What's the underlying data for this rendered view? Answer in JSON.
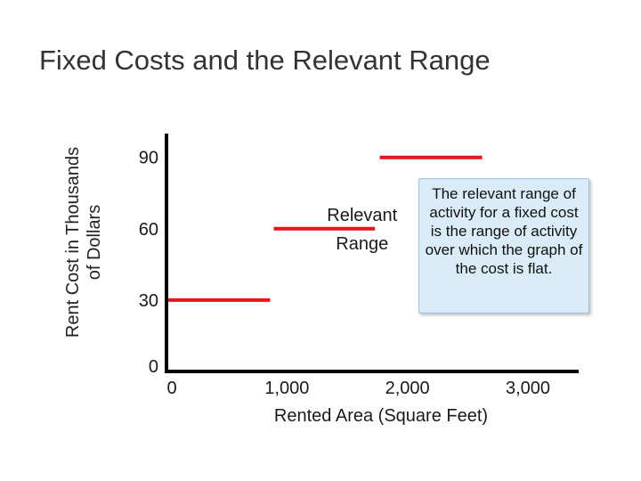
{
  "title": "Fixed Costs and the Relevant Range",
  "callout": "The relevant range of activity for a fixed cost is the range of activity over which the graph of the cost is flat.",
  "colors": {
    "line": "#e8141c",
    "axis": "#000000",
    "callout_bg": "#d9ecf7"
  },
  "chart_data": {
    "type": "line",
    "title": "Fixed Costs and the Relevant Range",
    "xlabel": "Rented Area (Square Feet)",
    "ylabel_lines": [
      "Rent Cost in Thousands",
      "of Dollars"
    ],
    "x_ticks": [
      {
        "value": 0,
        "label": "0"
      },
      {
        "value": 1000,
        "label": "1,000"
      },
      {
        "value": 2000,
        "label": "2,000"
      },
      {
        "value": 3000,
        "label": "3,000"
      }
    ],
    "y_ticks": [
      {
        "value": 0,
        "label": "0"
      },
      {
        "value": 30,
        "label": "30"
      },
      {
        "value": 60,
        "label": "60"
      },
      {
        "value": 90,
        "label": "90"
      }
    ],
    "xlim": [
      0,
      3000
    ],
    "ylim": [
      0,
      100
    ],
    "segments": [
      {
        "x_start": 0,
        "x_end": 860,
        "y": 30
      },
      {
        "x_start": 890,
        "x_end": 1730,
        "y": 60
      },
      {
        "x_start": 1770,
        "x_end": 2620,
        "y": 90
      }
    ],
    "annotations": [
      {
        "text": "Relevant",
        "x": 1550,
        "y": 66
      },
      {
        "text": "Range",
        "x": 1550,
        "y": 54
      }
    ],
    "grid": false
  }
}
